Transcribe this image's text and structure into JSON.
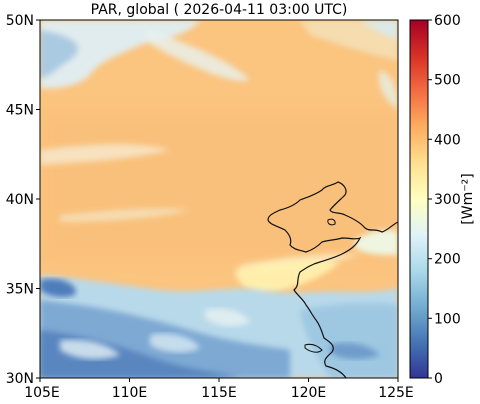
{
  "title": "PAR, global ( 2026-04-11 03:00 UTC)",
  "axes": {
    "x_ticks": [
      "105E",
      "110E",
      "115E",
      "120E",
      "125E"
    ],
    "y_ticks": [
      "50N",
      "45N",
      "40N",
      "35N",
      "30N"
    ]
  },
  "colorbar": {
    "label": "[Wm⁻²]",
    "ticks": [
      "600",
      "500",
      "400",
      "300",
      "200",
      "100",
      "0"
    ],
    "range": [
      0,
      600
    ],
    "stops": [
      "#313695",
      "#4575b4",
      "#74add1",
      "#abd9e9",
      "#e0f3f8",
      "#ffffbf",
      "#fee090",
      "#fdae61",
      "#f46d43",
      "#d73027",
      "#a50026"
    ]
  },
  "map": {
    "extent_lon": [
      105,
      125
    ],
    "extent_lat": [
      30,
      50
    ],
    "background_color": "#fbc47f",
    "cloud_color_light": "#c9e6f0",
    "cloud_color_dark": "#5f8fc4"
  }
}
